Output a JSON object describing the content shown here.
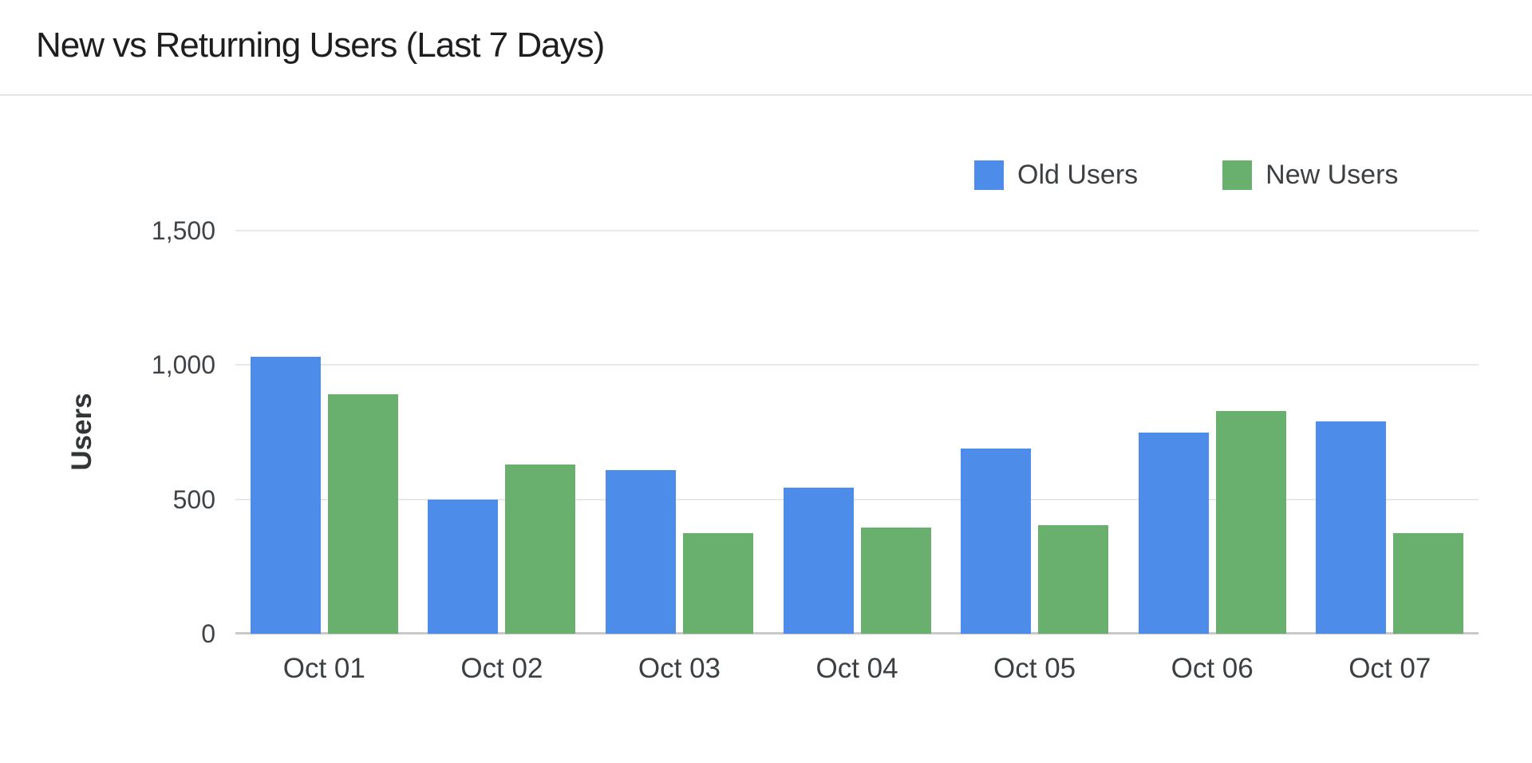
{
  "page": {
    "title": "New vs Returning Users (Last 7 Days)"
  },
  "chart_data": {
    "type": "bar",
    "title": "New vs Returning Users (Last 7 Days)",
    "categories": [
      "Oct 01",
      "Oct 02",
      "Oct 03",
      "Oct 04",
      "Oct 05",
      "Oct 06",
      "Oct 07"
    ],
    "series": [
      {
        "name": "Old Users",
        "color": "#4d8de9",
        "values": [
          1030,
          500,
          610,
          545,
          690,
          750,
          790
        ]
      },
      {
        "name": "New Users",
        "color": "#69b06f",
        "values": [
          890,
          630,
          375,
          395,
          405,
          830,
          375
        ]
      }
    ],
    "xlabel": "",
    "ylabel": "Users",
    "ylim": [
      0,
      1500
    ],
    "yticks": [
      0,
      500,
      1000,
      1500
    ],
    "ytick_labels": [
      "0",
      "500",
      "1,000",
      "1,500"
    ],
    "grid": true,
    "legend_position": "top-right",
    "colors": {
      "title_text": "#1e1e20",
      "axis_text": "#3c4043",
      "gridline": "#e8e8ea",
      "baseline": "#c9c9cb",
      "divider": "#e4e4e6",
      "background": "#ffffff"
    }
  }
}
